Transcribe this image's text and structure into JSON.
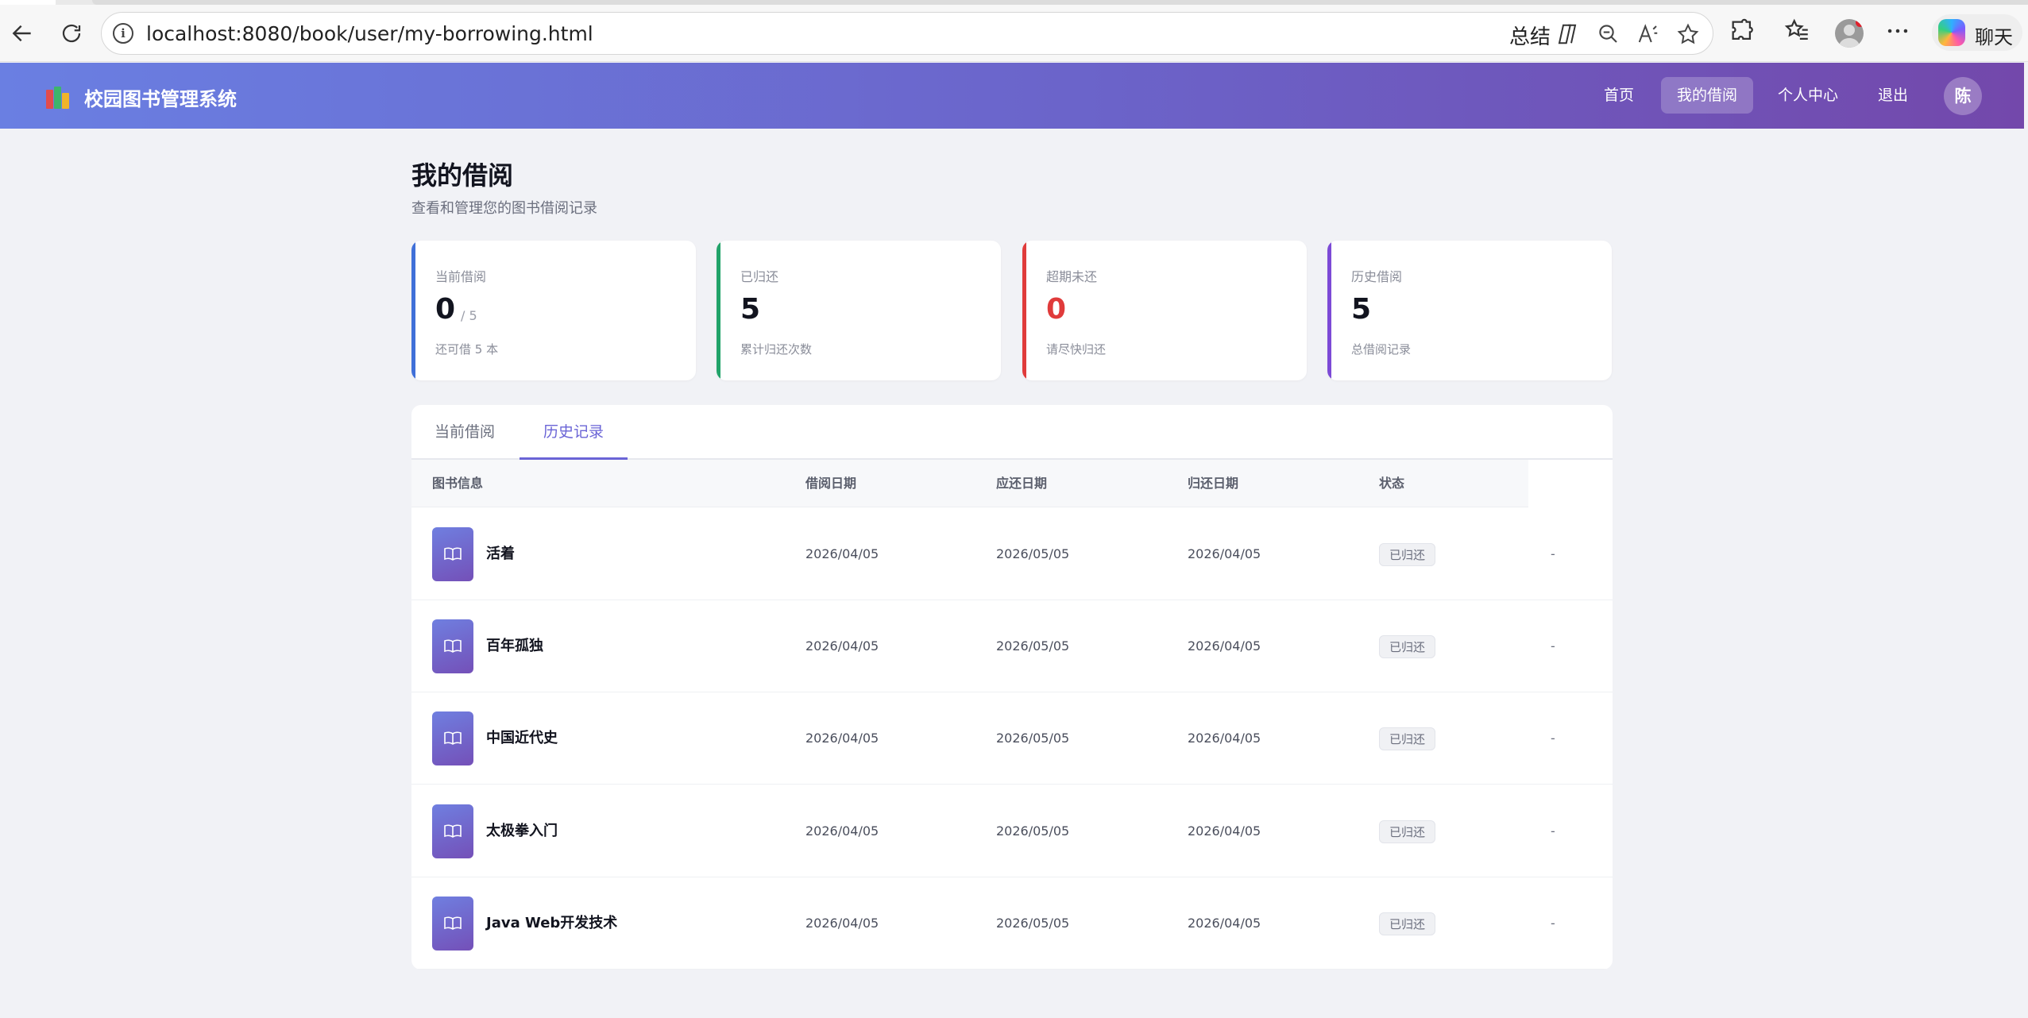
{
  "browser": {
    "url": "localhost:8080/book/user/my-borrowing.html",
    "summarize_label": "总结",
    "chat_label": "聊天"
  },
  "header": {
    "title": "校园图书管理系统",
    "nav": [
      "首页",
      "我的借阅",
      "个人中心",
      "退出"
    ],
    "active_nav": "我的借阅",
    "avatar_text": "陈"
  },
  "page": {
    "title": "我的借阅",
    "subtitle": "查看和管理您的图书借阅记录"
  },
  "stats": [
    {
      "label": "当前借阅",
      "value": "0",
      "total": "/ 5",
      "hint": "还可借 5 本",
      "accent": "#3f6fd8"
    },
    {
      "label": "已归还",
      "value": "5",
      "hint": "累计归还次数",
      "accent": "#22a36a"
    },
    {
      "label": "超期未还",
      "value": "0",
      "hint": "请尽快归还",
      "accent": "#e03b3b",
      "value_color": "#e03b3b"
    },
    {
      "label": "历史借阅",
      "value": "5",
      "hint": "总借阅记录",
      "accent": "#7c4ad6"
    }
  ],
  "tabs": [
    "当前借阅",
    "历史记录"
  ],
  "active_tab": "历史记录",
  "table": {
    "columns": [
      "图书信息",
      "借阅日期",
      "应还日期",
      "归还日期",
      "状态"
    ],
    "rows": [
      {
        "title": "活着",
        "borrow": "2026/04/05",
        "due": "2026/05/05",
        "returned": "2026/04/05",
        "status": "已归还",
        "action": "-"
      },
      {
        "title": "百年孤独",
        "borrow": "2026/04/05",
        "due": "2026/05/05",
        "returned": "2026/04/05",
        "status": "已归还",
        "action": "-"
      },
      {
        "title": "中国近代史",
        "borrow": "2026/04/05",
        "due": "2026/05/05",
        "returned": "2026/04/05",
        "status": "已归还",
        "action": "-"
      },
      {
        "title": "太极拳入门",
        "borrow": "2026/04/05",
        "due": "2026/05/05",
        "returned": "2026/04/05",
        "status": "已归还",
        "action": "-"
      },
      {
        "title": "Java Web开发技术",
        "borrow": "2026/04/05",
        "due": "2026/05/05",
        "returned": "2026/04/05",
        "status": "已归还",
        "action": "-"
      }
    ]
  }
}
